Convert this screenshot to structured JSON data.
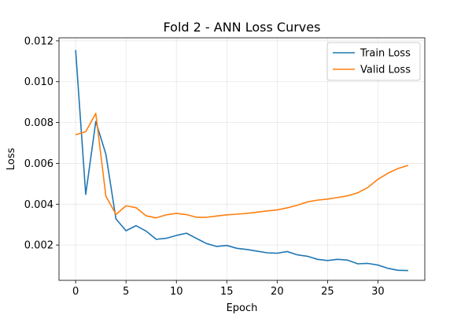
{
  "chart_data": {
    "type": "line",
    "title": "Fold 2 - ANN Loss Curves",
    "xlabel": "Epoch",
    "ylabel": "Loss",
    "xlim": [
      -1.65,
      34.65
    ],
    "ylim": [
      0.00027,
      0.01215
    ],
    "xticks": [
      0,
      5,
      10,
      15,
      20,
      25,
      30
    ],
    "yticks": [
      0.002,
      0.004,
      0.006,
      0.008,
      0.01,
      0.012
    ],
    "ytick_labels": [
      "0.002",
      "0.004",
      "0.006",
      "0.008",
      "0.010",
      "0.012"
    ],
    "grid": true,
    "legend_position": "top-right",
    "x": [
      0,
      1,
      2,
      3,
      4,
      5,
      6,
      7,
      8,
      9,
      10,
      11,
      12,
      13,
      14,
      15,
      16,
      17,
      18,
      19,
      20,
      21,
      22,
      23,
      24,
      25,
      26,
      27,
      28,
      29,
      30,
      31,
      32,
      33
    ],
    "series": [
      {
        "name": "Train Loss",
        "color": "#1f77b4",
        "values": [
          0.01155,
          0.00448,
          0.00805,
          0.00645,
          0.00328,
          0.0027,
          0.00295,
          0.00268,
          0.00228,
          0.00233,
          0.00247,
          0.00258,
          0.00232,
          0.00207,
          0.00193,
          0.00198,
          0.00184,
          0.00178,
          0.0017,
          0.00162,
          0.0016,
          0.00168,
          0.00152,
          0.00145,
          0.0013,
          0.00124,
          0.0013,
          0.00126,
          0.00108,
          0.0011,
          0.00102,
          0.00086,
          0.00076,
          0.00075
        ]
      },
      {
        "name": "Valid Loss",
        "color": "#ff7f0e",
        "values": [
          0.0074,
          0.00755,
          0.00845,
          0.0044,
          0.0035,
          0.00392,
          0.00383,
          0.00343,
          0.00333,
          0.00348,
          0.00355,
          0.00349,
          0.00336,
          0.00336,
          0.00342,
          0.00348,
          0.00351,
          0.00355,
          0.00361,
          0.00367,
          0.00372,
          0.00382,
          0.00395,
          0.00411,
          0.0042,
          0.00425,
          0.00433,
          0.00441,
          0.00456,
          0.00482,
          0.00522,
          0.00552,
          0.00575,
          0.0059
        ]
      }
    ]
  }
}
